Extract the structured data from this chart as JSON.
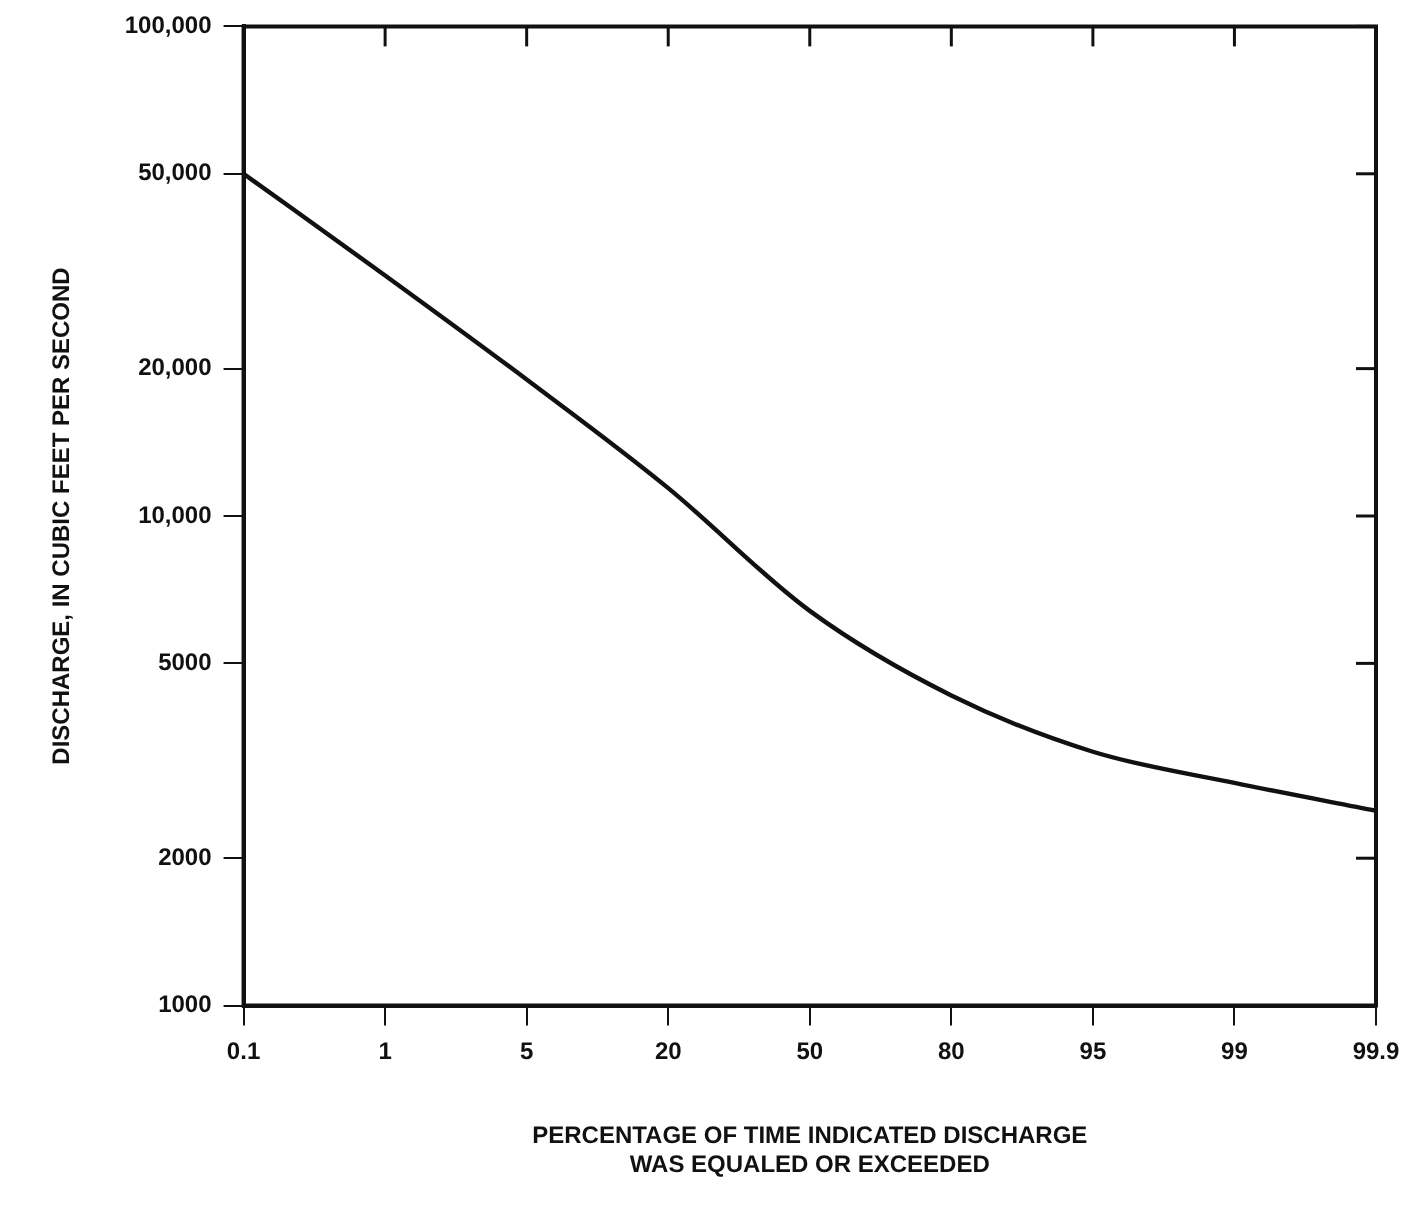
{
  "chart_data": {
    "type": "line",
    "xlabel": "PERCENTAGE OF TIME INDICATED DISCHARGE\nWAS EQUALED OR EXCEEDED",
    "ylabel": "DISCHARGE, IN CUBIC FEET PER SECOND",
    "categories": [
      "0.1",
      "1",
      "5",
      "20",
      "50",
      "80",
      "95",
      "99",
      "99.9"
    ],
    "series": [
      {
        "color": "#111111",
        "values": [
          50000,
          31000,
          19000,
          11400,
          6400,
          4300,
          3300,
          2850,
          2500
        ]
      }
    ],
    "log": "y",
    "ylim": [
      1000,
      100000
    ],
    "yticks": [
      1000,
      2000,
      5000,
      {
        "value": 10000,
        "label": "10,000"
      },
      {
        "value": 20000,
        "label": "20,000"
      },
      {
        "value": 50000,
        "label": "50,000"
      },
      {
        "value": 100000,
        "label": "100,000"
      }
    ],
    "grid": false,
    "legend": false,
    "marker": "none",
    "line_style": "solid"
  }
}
